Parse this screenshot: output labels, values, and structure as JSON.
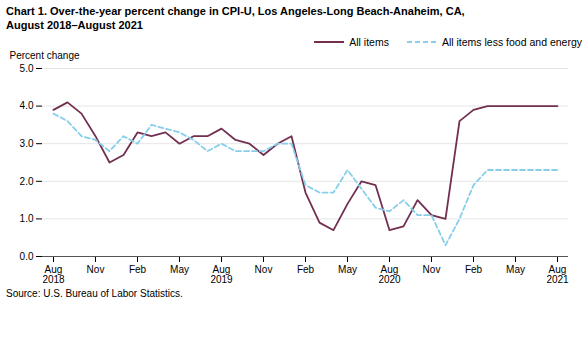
{
  "chart_data": {
    "type": "line",
    "title": "Chart 1. Over-the-year percent change in CPI-U, Los Angeles-Long Beach-Anaheim, CA,",
    "subtitle": "August 2018–August 2021",
    "y_label": "Percent change",
    "caption": "Source: U.S. Bureau of Labor Statistics.",
    "categories": [
      "Aug\n2018",
      null,
      null,
      "Nov",
      null,
      null,
      "Feb",
      null,
      null,
      "May",
      null,
      null,
      "Aug\n2019",
      null,
      null,
      "Nov",
      null,
      null,
      "Feb",
      null,
      null,
      "May",
      null,
      null,
      "Aug\n2020",
      null,
      null,
      "Nov",
      null,
      null,
      "Feb",
      null,
      null,
      "May",
      null,
      null,
      "Aug\n2021"
    ],
    "series": [
      {
        "name": "All items",
        "color": "#722F50",
        "line_style": "solid",
        "values": [
          3.9,
          4.1,
          3.8,
          3.2,
          2.5,
          2.7,
          3.3,
          3.2,
          3.3,
          3.0,
          3.2,
          3.2,
          3.4,
          3.1,
          3.0,
          2.7,
          3.0,
          3.2,
          1.7,
          0.9,
          0.7,
          1.4,
          2.0,
          1.9,
          0.7,
          0.8,
          1.5,
          1.1,
          1.0,
          3.6,
          3.9,
          4.0,
          4.0,
          4.0,
          4.0,
          4.0,
          4.0
        ]
      },
      {
        "name": "All items less food and energy",
        "color": "#87CEEB",
        "line_style": "dashed",
        "values": [
          3.8,
          3.6,
          3.2,
          3.1,
          2.8,
          3.2,
          3.0,
          3.5,
          3.4,
          3.3,
          3.1,
          2.8,
          3.0,
          2.8,
          2.8,
          2.8,
          3.0,
          3.0,
          1.9,
          1.7,
          1.7,
          2.3,
          1.8,
          1.3,
          1.2,
          1.5,
          1.1,
          1.1,
          0.3,
          1.0,
          1.9,
          2.3,
          2.3,
          2.3,
          2.3,
          2.3,
          2.3
        ]
      }
    ],
    "ylim": [
      0.0,
      5.0
    ],
    "yticks": [
      {
        "value": 0,
        "label": "0.0"
      },
      {
        "value": 1,
        "label": "1.0"
      },
      {
        "value": 2,
        "label": "2.0"
      },
      {
        "value": 3,
        "label": "3.0"
      },
      {
        "value": 4,
        "label": "4.0"
      },
      {
        "value": 5,
        "label": "5.0"
      }
    ],
    "grid": true,
    "legend": "top right"
  }
}
